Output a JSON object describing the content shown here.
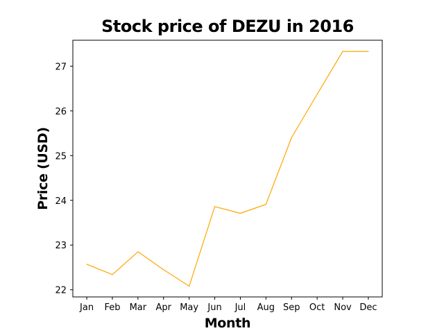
{
  "chart_data": {
    "type": "line",
    "title": "Stock price of DEZU in 2016",
    "xlabel": "Month",
    "ylabel": "Price (USD)",
    "categories": [
      "Jan",
      "Feb",
      "Mar",
      "Apr",
      "May",
      "Jun",
      "Jul",
      "Aug",
      "Sep",
      "Oct",
      "Nov",
      "Dec"
    ],
    "series": [
      {
        "values": [
          22.57,
          22.34,
          22.85,
          22.45,
          22.08,
          23.86,
          23.71,
          23.91,
          25.4,
          26.37,
          27.33,
          27.33
        ],
        "color": "#ffa500"
      }
    ],
    "yticks": [
      22,
      23,
      24,
      25,
      26,
      27
    ],
    "ylim": [
      21.84,
      27.58
    ],
    "grid": false,
    "legend": "none"
  }
}
